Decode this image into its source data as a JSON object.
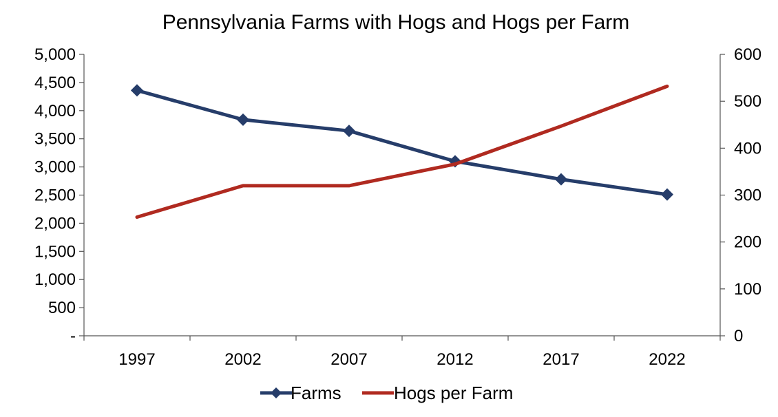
{
  "chart_data": {
    "type": "line",
    "title": "Pennsylvania Farms with Hogs and Hogs per Farm",
    "categories": [
      "1997",
      "2002",
      "2007",
      "2012",
      "2017",
      "2022"
    ],
    "series": [
      {
        "name": "Farms",
        "axis": "left",
        "color": "#263d6a",
        "marker": "diamond",
        "values": [
          4360,
          3840,
          3640,
          3100,
          2780,
          2510
        ]
      },
      {
        "name": "Hogs per Farm",
        "axis": "right",
        "color": "#b02a20",
        "marker": "none",
        "values": [
          253,
          320,
          320,
          366,
          447,
          532
        ]
      }
    ],
    "y_left": {
      "min": 0,
      "max": 5000,
      "step": 500,
      "tick_labels": [
        "-",
        "500",
        "1,000",
        "1,500",
        "2,000",
        "2,500",
        "3,000",
        "3,500",
        "4,000",
        "4,500",
        "5,000"
      ]
    },
    "y_right": {
      "min": 0,
      "max": 600,
      "step": 100,
      "tick_labels": [
        "0",
        "100",
        "200",
        "300",
        "400",
        "500",
        "600"
      ]
    },
    "grid": false,
    "legend": "bottom-center"
  }
}
